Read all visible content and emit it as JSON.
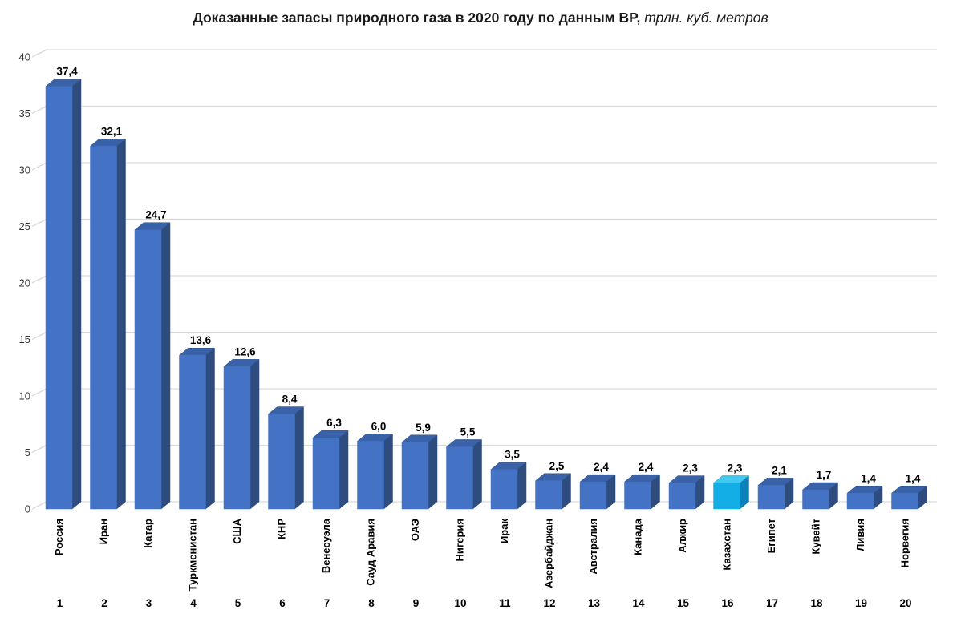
{
  "title": {
    "main": "Доказанные запасы природного газа в 2020 году по данным BP,",
    "unit": " трлн. куб. метров"
  },
  "chart_data": {
    "type": "bar",
    "style": "3d-column",
    "title": "Доказанные запасы природного газа в 2020 году по данным BP, трлн. куб. метров",
    "xlabel": "",
    "ylabel": "",
    "ylim": [
      0,
      40
    ],
    "yticks": [
      0,
      5,
      10,
      15,
      20,
      25,
      30,
      35,
      40
    ],
    "grid": true,
    "legend": false,
    "categories": [
      "Россия",
      "Иран",
      "Катар",
      "Туркменистан",
      "США",
      "КНР",
      "Венесуэла",
      "Сауд Аравия",
      "ОАЭ",
      "Нигерия",
      "Ирак",
      "Азербайджан",
      "Австралия",
      "Канада",
      "Алжир",
      "Казахстан",
      "Египет",
      "Кувейт",
      "Ливия",
      "Норвегия"
    ],
    "ranks": [
      1,
      2,
      3,
      4,
      5,
      6,
      7,
      8,
      9,
      10,
      11,
      12,
      13,
      14,
      15,
      16,
      17,
      18,
      19,
      20
    ],
    "values": [
      37.4,
      32.1,
      24.7,
      13.6,
      12.6,
      8.4,
      6.3,
      6.0,
      5.9,
      5.5,
      3.5,
      2.5,
      2.4,
      2.4,
      2.3,
      2.3,
      2.1,
      1.7,
      1.4,
      1.4
    ],
    "value_labels": [
      "37,4",
      "32,1",
      "24,7",
      "13,6",
      "12,6",
      "8,4",
      "6,3",
      "6,0",
      "5,9",
      "5,5",
      "3,5",
      "2,5",
      "2,4",
      "2,4",
      "2,3",
      "2,3",
      "2,1",
      "1,7",
      "1,4",
      "1,4"
    ],
    "highlight_index": 15,
    "colors": {
      "bar_front": "#4472C4",
      "bar_side": "#2E4D7E",
      "bar_top": "#3A62A9",
      "highlight_front": "#12AEE5",
      "highlight_side": "#0C80B8",
      "highlight_top": "#44C8F1",
      "gridline": "#D9D9D9",
      "text": "#000000"
    }
  }
}
